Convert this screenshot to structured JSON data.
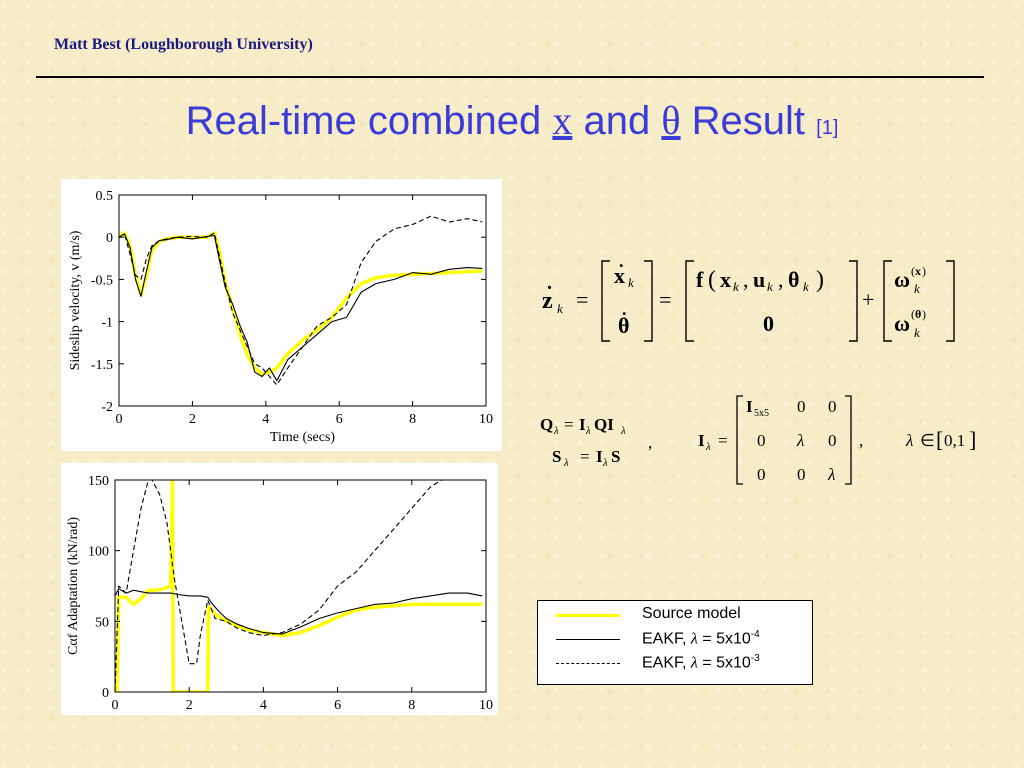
{
  "header": {
    "author": "Matt Best (Loughborough University)"
  },
  "title": {
    "prefix": "Real-time combined ",
    "sym_x": "x",
    "middle": " and ",
    "sym_theta": "θ",
    "suffix": " Result ",
    "ref": "[1]"
  },
  "colors": {
    "title": "#3b3bd8",
    "author": "#1a1a80",
    "source_model": "#ffff00",
    "eakf": "#000000"
  },
  "legend": {
    "items": [
      {
        "label": "Source model",
        "style": "solid-yellow"
      },
      {
        "label_pre": "EAKF, ",
        "lambda": "λ",
        "label_mid": " = 5x10",
        "exp": "-4",
        "style": "solid-black"
      },
      {
        "label_pre": "EAKF, ",
        "lambda": "λ",
        "label_mid": " = 5x10",
        "exp": "-3",
        "style": "dashed-black"
      }
    ]
  },
  "chart_data": [
    {
      "type": "line",
      "xlabel": "Time (secs)",
      "ylabel": "Sideslip velocity, v (m/s)",
      "xlim": [
        0,
        10
      ],
      "ylim": [
        -2,
        0.5
      ],
      "xticks": [
        "0",
        "2",
        "4",
        "6",
        "8",
        "10"
      ],
      "yticks": [
        "0.5",
        "0",
        "-0.5",
        "-1",
        "-1.5",
        "-2"
      ],
      "series": [
        {
          "name": "Source model",
          "color": "#ffff00",
          "x": [
            0,
            0.15,
            0.3,
            0.45,
            0.6,
            0.75,
            0.9,
            1.1,
            1.3,
            1.6,
            2.0,
            2.4,
            2.6,
            2.75,
            2.9,
            3.1,
            3.3,
            3.5,
            3.7,
            3.9,
            4.1,
            4.3,
            4.6,
            5.0,
            5.4,
            5.8,
            6.2,
            6.6,
            7.0,
            7.5,
            8.0,
            8.5,
            9.0,
            9.5,
            9.9
          ],
          "y": [
            0,
            0.05,
            -0.1,
            -0.45,
            -0.68,
            -0.45,
            -0.15,
            -0.05,
            -0.02,
            0,
            0,
            0,
            0.05,
            -0.2,
            -0.55,
            -0.85,
            -1.15,
            -1.4,
            -1.55,
            -1.62,
            -1.6,
            -1.55,
            -1.38,
            -1.22,
            -1.1,
            -0.95,
            -0.72,
            -0.55,
            -0.48,
            -0.45,
            -0.44,
            -0.43,
            -0.42,
            -0.41,
            -0.4
          ]
        },
        {
          "name": "EAKF, λ = 5x10-4",
          "color": "#000000",
          "x": [
            0,
            0.15,
            0.3,
            0.45,
            0.6,
            0.75,
            0.9,
            1.1,
            1.3,
            1.6,
            2.0,
            2.4,
            2.6,
            2.75,
            2.9,
            3.1,
            3.3,
            3.5,
            3.7,
            3.9,
            4.1,
            4.3,
            4.6,
            5.0,
            5.4,
            5.8,
            6.2,
            6.6,
            7.0,
            7.5,
            8.0,
            8.5,
            9.0,
            9.5,
            9.9
          ],
          "y": [
            0,
            0.04,
            -0.12,
            -0.5,
            -0.7,
            -0.4,
            -0.12,
            -0.04,
            -0.03,
            0,
            -0.02,
            0.01,
            0.02,
            -0.3,
            -0.6,
            -0.8,
            -1.05,
            -1.25,
            -1.6,
            -1.65,
            -1.55,
            -1.7,
            -1.45,
            -1.3,
            -1.15,
            -1.0,
            -0.95,
            -0.65,
            -0.55,
            -0.5,
            -0.42,
            -0.44,
            -0.38,
            -0.36,
            -0.37
          ]
        },
        {
          "name": "EAKF, λ = 5x10-3",
          "color": "#000000",
          "dash": true,
          "x": [
            0,
            0.15,
            0.3,
            0.45,
            0.6,
            0.75,
            0.9,
            1.1,
            1.3,
            1.6,
            2.0,
            2.4,
            2.6,
            2.75,
            2.9,
            3.1,
            3.3,
            3.5,
            3.7,
            3.9,
            4.1,
            4.3,
            4.6,
            5.0,
            5.4,
            5.8,
            6.2,
            6.6,
            7.0,
            7.5,
            8.0,
            8.5,
            9.0,
            9.5,
            9.9
          ],
          "y": [
            0,
            0.04,
            -0.2,
            -0.45,
            -0.5,
            -0.25,
            -0.1,
            -0.04,
            -0.02,
            0,
            0.01,
            0,
            0.05,
            -0.25,
            -0.55,
            -0.9,
            -1.1,
            -1.3,
            -1.5,
            -1.55,
            -1.65,
            -1.75,
            -1.55,
            -1.3,
            -1.05,
            -0.95,
            -0.8,
            -0.3,
            -0.05,
            0.1,
            0.15,
            0.25,
            0.18,
            0.22,
            0.18
          ]
        }
      ]
    },
    {
      "type": "line",
      "xlabel": "",
      "ylabel": "Cαf Adaptation (kN/rad)",
      "xlim": [
        0,
        10
      ],
      "ylim": [
        0,
        150
      ],
      "xticks": [
        "0",
        "2",
        "4",
        "6",
        "8",
        "10"
      ],
      "yticks": [
        "150",
        "100",
        "50",
        "0"
      ],
      "series": [
        {
          "name": "Source model",
          "color": "#ffff00",
          "x": [
            0,
            0.05,
            0.1,
            0.3,
            0.5,
            0.7,
            0.9,
            1.1,
            1.3,
            1.5,
            1.55,
            1.57,
            1.6,
            2.1,
            2.5,
            2.52,
            2.55,
            2.7,
            3.0,
            3.3,
            3.6,
            4.0,
            4.5,
            5.0,
            5.5,
            6.0,
            6.5,
            7.0,
            7.5,
            8.0,
            8.5,
            9.0,
            9.5,
            9.9
          ],
          "y": [
            0,
            0,
            67,
            67,
            62,
            66,
            72,
            72,
            73,
            75,
            150,
            0,
            0,
            0,
            0,
            60,
            60,
            55,
            50,
            47,
            44,
            42,
            40,
            42,
            47,
            53,
            58,
            60,
            61,
            62,
            62,
            62,
            62,
            62
          ]
        },
        {
          "name": "EAKF, λ = 5x10-4",
          "color": "#000000",
          "x": [
            0,
            0.1,
            0.3,
            0.5,
            0.7,
            0.9,
            1.1,
            1.3,
            1.5,
            1.7,
            2.0,
            2.3,
            2.5,
            2.6,
            2.8,
            3.0,
            3.3,
            3.6,
            4.0,
            4.5,
            5.0,
            5.5,
            6.0,
            6.5,
            7.0,
            7.5,
            8.0,
            8.5,
            9.0,
            9.5,
            9.9
          ],
          "y": [
            68,
            73,
            70,
            72,
            71,
            70,
            70,
            70,
            70,
            69,
            68,
            68,
            67,
            63,
            57,
            52,
            48,
            45,
            42,
            41,
            46,
            52,
            56,
            59,
            62,
            63,
            66,
            68,
            70,
            70,
            68
          ]
        },
        {
          "name": "EAKF, λ = 5x10-3",
          "color": "#000000",
          "dash": true,
          "x": [
            0,
            0.1,
            0.3,
            0.5,
            0.7,
            0.9,
            1.0,
            1.2,
            1.4,
            1.6,
            1.8,
            2.0,
            2.2,
            2.3,
            2.5,
            2.7,
            3.0,
            3.3,
            3.6,
            4.0,
            4.5,
            5.0,
            5.5,
            6.0,
            6.5,
            7.0,
            7.5,
            8.0,
            8.5,
            8.8,
            9.0
          ],
          "y": [
            0,
            75,
            70,
            100,
            130,
            150,
            150,
            140,
            120,
            80,
            50,
            20,
            20,
            40,
            65,
            52,
            50,
            45,
            42,
            40,
            42,
            48,
            58,
            75,
            85,
            100,
            115,
            130,
            145,
            150,
            150
          ]
        }
      ]
    }
  ]
}
